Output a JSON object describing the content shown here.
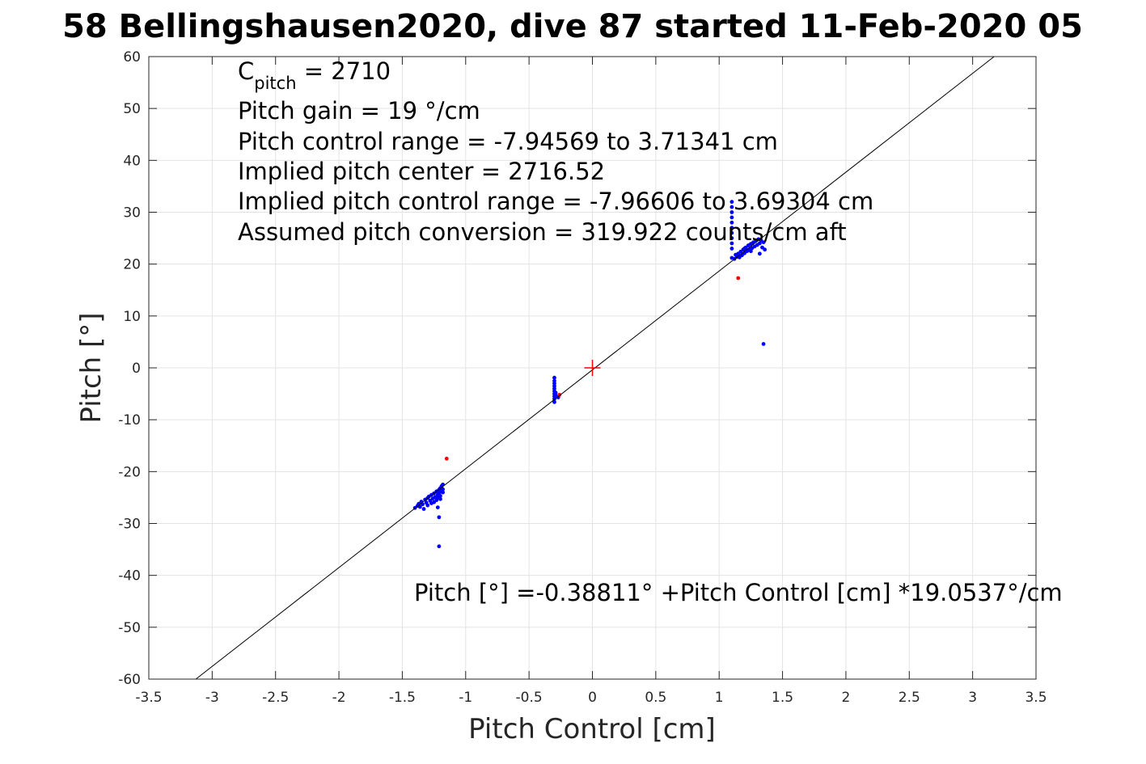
{
  "chart_data": {
    "type": "scatter",
    "title": "58 Bellingshausen2020, dive 87 started 11-Feb-2020 05",
    "xlabel": "Pitch Control [cm]",
    "ylabel": "Pitch [°]",
    "xlim": [
      -3.5,
      3.5
    ],
    "ylim": [
      -60,
      60
    ],
    "xticks": [
      -3.5,
      -3,
      -2.5,
      -2,
      -1.5,
      -1,
      -0.5,
      0,
      0.5,
      1,
      1.5,
      2,
      2.5,
      3,
      3.5
    ],
    "yticks": [
      -60,
      -50,
      -40,
      -30,
      -20,
      -10,
      0,
      10,
      20,
      30,
      40,
      50,
      60
    ],
    "xtick_labels": [
      "-3.5",
      "-3",
      "-2.5",
      "-2",
      "-1.5",
      "-1",
      "-0.5",
      "0",
      "0.5",
      "1",
      "1.5",
      "2",
      "2.5",
      "3",
      "3.5"
    ],
    "ytick_labels": [
      "-60",
      "-50",
      "-40",
      "-30",
      "-20",
      "-10",
      "0",
      "10",
      "20",
      "30",
      "40",
      "50",
      "60"
    ],
    "grid": true,
    "annotations": {
      "c_pitch_base": "C",
      "c_pitch_sub": "pitch",
      "c_pitch_value": " = 2710",
      "pitch_gain": "Pitch gain = 19 °/cm",
      "pitch_control_range": "Pitch control range = -7.94569 to 3.71341 cm",
      "implied_center": "Implied pitch center = 2716.52",
      "implied_range": "Implied pitch control range = -7.96606 to 3.69304 cm",
      "assumed_conversion": "Assumed pitch conversion = 319.922 counts/cm aft",
      "fit_equation": "Pitch [°] =-0.38811° +Pitch Control [cm] *19.0537°/cm"
    },
    "fit_line": {
      "intercept": -0.38811,
      "slope": 19.0537,
      "color": "#000000"
    },
    "center_marker": {
      "x": 0,
      "y": 0,
      "color": "#ff0000"
    },
    "series": [
      {
        "color": "#0000ff",
        "points": [
          [
            -1.4,
            -27.0
          ],
          [
            -1.38,
            -26.6
          ],
          [
            -1.37,
            -26.2
          ],
          [
            -1.36,
            -26.8
          ],
          [
            -1.35,
            -25.8
          ],
          [
            -1.34,
            -26.3
          ],
          [
            -1.33,
            -27.2
          ],
          [
            -1.32,
            -25.4
          ],
          [
            -1.31,
            -26.0
          ],
          [
            -1.3,
            -25.1
          ],
          [
            -1.3,
            -26.5
          ],
          [
            -1.29,
            -24.8
          ],
          [
            -1.28,
            -25.6
          ],
          [
            -1.27,
            -26.1
          ],
          [
            -1.27,
            -24.5
          ],
          [
            -1.26,
            -25.2
          ],
          [
            -1.25,
            -25.9
          ],
          [
            -1.25,
            -24.2
          ],
          [
            -1.24,
            -24.9
          ],
          [
            -1.23,
            -25.5
          ],
          [
            -1.23,
            -23.8
          ],
          [
            -1.22,
            -24.4
          ],
          [
            -1.22,
            -25.0
          ],
          [
            -1.21,
            -23.5
          ],
          [
            -1.21,
            -24.1
          ],
          [
            -1.2,
            -24.7
          ],
          [
            -1.2,
            -23.2
          ],
          [
            -1.2,
            -25.3
          ],
          [
            -1.19,
            -23.9
          ],
          [
            -1.19,
            -22.8
          ],
          [
            -1.18,
            -24.0
          ],
          [
            -1.18,
            -22.5
          ],
          [
            -1.18,
            -23.4
          ],
          [
            -1.22,
            -26.9
          ],
          [
            -1.21,
            -28.8
          ],
          [
            -1.21,
            -34.4
          ],
          [
            -0.3,
            -1.9
          ],
          [
            -0.3,
            -2.5
          ],
          [
            -0.3,
            -3.0
          ],
          [
            -0.3,
            -3.5
          ],
          [
            -0.3,
            -4.0
          ],
          [
            -0.3,
            -4.5
          ],
          [
            -0.3,
            -5.0
          ],
          [
            -0.3,
            -5.5
          ],
          [
            -0.3,
            -6.0
          ],
          [
            -0.3,
            -6.6
          ],
          [
            -0.29,
            -4.8
          ],
          [
            -0.29,
            -5.3
          ],
          [
            -0.27,
            -5.7
          ],
          [
            1.1,
            32.0
          ],
          [
            1.1,
            31.0
          ],
          [
            1.1,
            30.0
          ],
          [
            1.1,
            29.0
          ],
          [
            1.1,
            28.0
          ],
          [
            1.1,
            27.0
          ],
          [
            1.1,
            26.0
          ],
          [
            1.1,
            25.0
          ],
          [
            1.1,
            24.0
          ],
          [
            1.1,
            23.0
          ],
          [
            1.1,
            21.2
          ],
          [
            1.12,
            21.0
          ],
          [
            1.13,
            21.8
          ],
          [
            1.14,
            21.4
          ],
          [
            1.15,
            22.0
          ],
          [
            1.16,
            21.3
          ],
          [
            1.17,
            22.4
          ],
          [
            1.18,
            21.7
          ],
          [
            1.19,
            22.8
          ],
          [
            1.2,
            22.1
          ],
          [
            1.21,
            23.2
          ],
          [
            1.22,
            22.5
          ],
          [
            1.23,
            23.6
          ],
          [
            1.24,
            22.8
          ],
          [
            1.25,
            23.9
          ],
          [
            1.26,
            23.1
          ],
          [
            1.27,
            24.2
          ],
          [
            1.28,
            23.4
          ],
          [
            1.29,
            24.5
          ],
          [
            1.3,
            23.7
          ],
          [
            1.31,
            24.8
          ],
          [
            1.32,
            24.0
          ],
          [
            1.33,
            24.6
          ],
          [
            1.34,
            23.2
          ],
          [
            1.35,
            24.2
          ],
          [
            1.36,
            22.8
          ],
          [
            1.2,
            23.0
          ],
          [
            1.25,
            22.5
          ],
          [
            1.32,
            22.0
          ],
          [
            1.35,
            4.6
          ]
        ]
      },
      {
        "color": "#ff0000",
        "points": [
          [
            -1.15,
            -17.5
          ],
          [
            -0.26,
            -5.2
          ],
          [
            1.15,
            17.3
          ]
        ]
      }
    ]
  }
}
